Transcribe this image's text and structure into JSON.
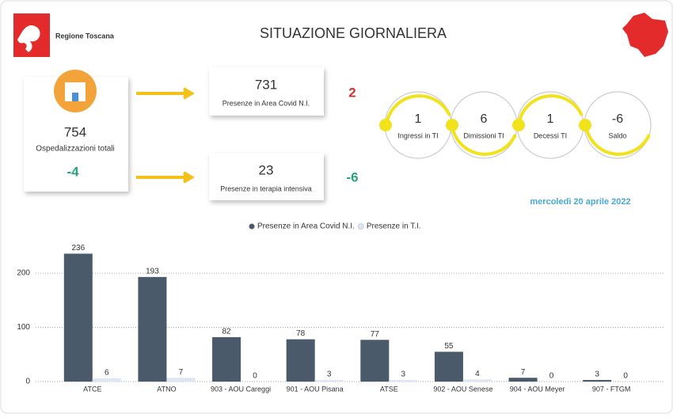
{
  "header": {
    "logo_text": "Regione Toscana",
    "title": "SITUAZIONE GIORNALIERA"
  },
  "total": {
    "value": 754,
    "label": "Ospedalizzazioni totali",
    "change": -4
  },
  "covid_area": {
    "value": 731,
    "label": "Presenze in Area Covid N.I.",
    "change": 2
  },
  "intensive": {
    "value": 23,
    "label": "Presenze in terapia intensiva",
    "change": -6
  },
  "flow": [
    {
      "value": 1,
      "label": "Ingressi in TI"
    },
    {
      "value": 6,
      "label": "Dimissioni TI"
    },
    {
      "value": 1,
      "label": "Decessi TI"
    },
    {
      "value": -6,
      "label": "Saldo"
    }
  ],
  "date": "mercoledì 20 aprile 2022",
  "chart_data": {
    "type": "bar",
    "categories": [
      "ATCE",
      "ATNO",
      "903 - AOU Careggi",
      "901 - AOU Pisana",
      "ATSE",
      "902 - AOU Senese",
      "904 - AOU Meyer",
      "907 - FTGM"
    ],
    "series": [
      {
        "name": "Presenze in Area Covid N.I.",
        "color": "#4b5a6a",
        "values": [
          236,
          193,
          82,
          78,
          77,
          55,
          7,
          3
        ]
      },
      {
        "name": "Presenze in T.I.",
        "color": "#dde7f3",
        "values": [
          6,
          7,
          0,
          3,
          3,
          4,
          0,
          0
        ]
      }
    ],
    "ylim": [
      0,
      260
    ],
    "yticks": [
      0,
      100,
      200
    ],
    "grid": true
  }
}
